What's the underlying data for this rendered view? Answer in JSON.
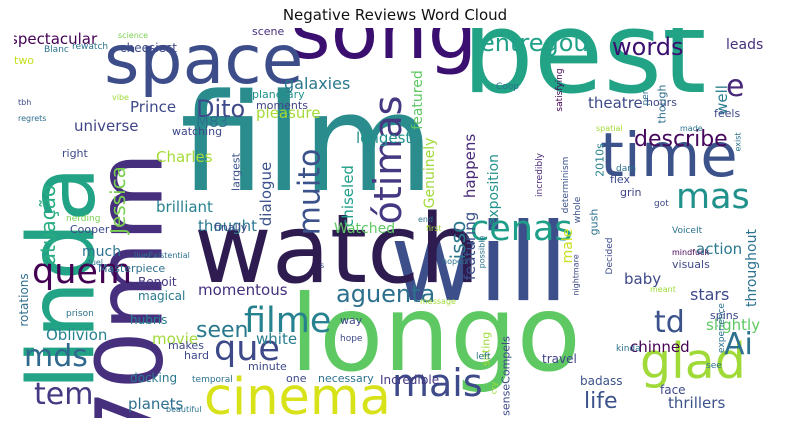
{
  "chart_data": {
    "type": "wordcloud",
    "title": "Negative Reviews Word Cloud",
    "words": [
      {
        "text": "film",
        "weight": 100,
        "color": "#2a8c8c"
      },
      {
        "text": "best",
        "weight": 84,
        "color": "#22a386"
      },
      {
        "text": "will",
        "weight": 80,
        "color": "#3c4f8a"
      },
      {
        "text": "longo",
        "weight": 78,
        "color": "#5ec962"
      },
      {
        "text": "watch",
        "weight": 70,
        "color": "#2e1b4f"
      },
      {
        "text": "linda",
        "weight": 68,
        "color": "#22a386"
      },
      {
        "text": "70mm",
        "weight": 68,
        "color": "#46307e"
      },
      {
        "text": "song",
        "weight": 58,
        "color": "#3b0f70"
      },
      {
        "text": "space",
        "weight": 50,
        "color": "#3d4d8a"
      },
      {
        "text": "time",
        "weight": 45,
        "color": "#3c528b"
      },
      {
        "text": "cinema",
        "weight": 38,
        "color": "#d8e219"
      },
      {
        "text": "glad",
        "weight": 36,
        "color": "#a0da39"
      },
      {
        "text": "mais",
        "weight": 28,
        "color": "#3e4a89"
      },
      {
        "text": "ótimas",
        "weight": 28,
        "color": "#453781"
      },
      {
        "text": "quem",
        "weight": 26,
        "color": "#440154"
      },
      {
        "text": "filme",
        "weight": 26,
        "color": "#26828e"
      },
      {
        "text": "cenas",
        "weight": 26,
        "color": "#1f9e89"
      },
      {
        "text": "que",
        "weight": 26,
        "color": "#3e4989"
      },
      {
        "text": "mas",
        "weight": 26,
        "color": "#21918c"
      },
      {
        "text": "muito",
        "weight": 22,
        "color": "#3b528b"
      },
      {
        "text": "mds",
        "weight": 22,
        "color": "#31688e"
      },
      {
        "text": "tem",
        "weight": 22,
        "color": "#443983"
      },
      {
        "text": "Ai",
        "weight": 22,
        "color": "#2c728e"
      },
      {
        "text": "td",
        "weight": 22,
        "color": "#3b528b"
      },
      {
        "text": "e",
        "weight": 22,
        "color": "#482878"
      },
      {
        "text": "entregou",
        "weight": 18,
        "color": "#1fa188"
      },
      {
        "text": "aguenta",
        "weight": 18,
        "color": "#2d708e"
      },
      {
        "text": "words",
        "weight": 18,
        "color": "#3b0f70"
      },
      {
        "text": "Dito",
        "weight": 18,
        "color": "#3e4a89"
      },
      {
        "text": "describe",
        "weight": 16,
        "color": "#46085c"
      },
      {
        "text": "life",
        "weight": 16,
        "color": "#3b528b"
      },
      {
        "text": "seen",
        "weight": 16,
        "color": "#2a788e"
      },
      {
        "text": "isso",
        "weight": 15,
        "color": "#2a788e"
      },
      {
        "text": "Jessica",
        "weight": 15,
        "color": "#7ad151"
      },
      {
        "text": "atuação",
        "weight": 15,
        "color": "#27ad81"
      },
      {
        "text": "spectacular",
        "weight": 11,
        "color": "#440154"
      },
      {
        "text": "cheesiest",
        "weight": 9,
        "color": "#3e4989"
      },
      {
        "text": "galaxies",
        "weight": 12,
        "color": "#2a788e"
      },
      {
        "text": "M83",
        "weight": 11,
        "color": "#2c728e"
      },
      {
        "text": "longest",
        "weight": 11,
        "color": "#21918c"
      },
      {
        "text": "pleasure",
        "weight": 11,
        "color": "#a5db36"
      },
      {
        "text": "featured",
        "weight": 10,
        "color": "#5ec962"
      },
      {
        "text": "theatre",
        "weight": 11,
        "color": "#3e4a89"
      },
      {
        "text": "well",
        "weight": 11,
        "color": "#287d8e"
      },
      {
        "text": "leads",
        "weight": 10,
        "color": "#46307e"
      },
      {
        "text": "Prince",
        "weight": 11,
        "color": "#3e4989"
      },
      {
        "text": "universe",
        "weight": 11,
        "color": "#414487"
      },
      {
        "text": "Charles",
        "weight": 11,
        "color": "#a5db36"
      },
      {
        "text": "brilliant",
        "weight": 11,
        "color": "#26828e"
      },
      {
        "text": "thought",
        "weight": 11,
        "color": "#2a788e"
      },
      {
        "text": "dialogue",
        "weight": 11,
        "color": "#3b528b"
      },
      {
        "text": "chiseled",
        "weight": 11,
        "color": "#1f9e89"
      },
      {
        "text": "Genuinely",
        "weight": 10,
        "color": "#a0da39"
      },
      {
        "text": "happens",
        "weight": 11,
        "color": "#482878"
      },
      {
        "text": "exposition",
        "weight": 10,
        "color": "#21918c"
      },
      {
        "text": "featuring",
        "weight": 11,
        "color": "#3b528b"
      },
      {
        "text": "male",
        "weight": 10,
        "color": "#c8e020"
      },
      {
        "text": "action",
        "weight": 11,
        "color": "#2a788e"
      },
      {
        "text": "throughout",
        "weight": 10,
        "color": "#2c728e"
      },
      {
        "text": "baby",
        "weight": 11,
        "color": "#3e4989"
      },
      {
        "text": "stars",
        "weight": 12,
        "color": "#3e4a89"
      },
      {
        "text": "momentous",
        "weight": 11,
        "color": "#46307e"
      },
      {
        "text": "Watched",
        "weight": 10,
        "color": "#5ec962"
      },
      {
        "text": "Oblivion",
        "weight": 11,
        "color": "#26828e"
      },
      {
        "text": "white",
        "weight": 11,
        "color": "#287d8e"
      },
      {
        "text": "movie",
        "weight": 11,
        "color": "#a0da39"
      },
      {
        "text": "slightly",
        "weight": 11,
        "color": "#5ec962"
      },
      {
        "text": "chinned",
        "weight": 11,
        "color": "#440154"
      },
      {
        "text": "thrillers",
        "weight": 11,
        "color": "#3b528b"
      },
      {
        "text": "planets",
        "weight": 11,
        "color": "#2e6e8e"
      },
      {
        "text": "docking",
        "weight": 9,
        "color": "#2a788e"
      },
      {
        "text": "Incredible",
        "weight": 9,
        "color": "#443983"
      },
      {
        "text": "badass",
        "weight": 9,
        "color": "#3b528b"
      },
      {
        "text": "travel",
        "weight": 9,
        "color": "#414487"
      },
      {
        "text": "face",
        "weight": 9,
        "color": "#3e4989"
      },
      {
        "text": "much",
        "weight": 10,
        "color": "#2c728e"
      },
      {
        "text": "rotations",
        "weight": 9,
        "color": "#2e6e8e"
      },
      {
        "text": "Benoit",
        "weight": 9,
        "color": "#443983"
      },
      {
        "text": "magical",
        "weight": 9,
        "color": "#2a788e"
      },
      {
        "text": "hubris",
        "weight": 9,
        "color": "#26828e"
      },
      {
        "text": "Masterpiece",
        "weight": 8,
        "color": "#2e6e8e"
      },
      {
        "text": "Cooper",
        "weight": 8,
        "color": "#3e4989"
      },
      {
        "text": "nerding",
        "weight": 7,
        "color": "#7ad151"
      },
      {
        "text": "liveExistential",
        "weight": 6,
        "color": "#2c728e"
      },
      {
        "text": "watching",
        "weight": 8,
        "color": "#3e4989"
      },
      {
        "text": "planetary",
        "weight": 8,
        "color": "#21918c"
      },
      {
        "text": "moments",
        "weight": 8,
        "color": "#414487"
      },
      {
        "text": "finally",
        "weight": 8,
        "color": "#3e4989"
      },
      {
        "text": "largest",
        "weight": 8,
        "color": "#3b528b"
      },
      {
        "text": "right",
        "weight": 8,
        "color": "#3e4989"
      },
      {
        "text": "two",
        "weight": 8,
        "color": "#c8e020"
      },
      {
        "text": "rewatch",
        "weight": 7,
        "color": "#2c728e"
      },
      {
        "text": "Blanc",
        "weight": 7,
        "color": "#2c728e"
      },
      {
        "text": "science",
        "weight": 6,
        "color": "#7ad151"
      },
      {
        "text": "scene",
        "weight": 8,
        "color": "#46307e"
      },
      {
        "text": "tbh",
        "weight": 6,
        "color": "#3e4989"
      },
      {
        "text": "regrets",
        "weight": 6,
        "color": "#2e6e8e"
      },
      {
        "text": "vibe",
        "weight": 6,
        "color": "#a0da39"
      },
      {
        "text": "Coop",
        "weight": 7,
        "color": "#2c728e"
      },
      {
        "text": "satisfying",
        "weight": 7,
        "color": "#440154"
      },
      {
        "text": "hours",
        "weight": 8,
        "color": "#3e4989"
      },
      {
        "text": "per",
        "weight": 7,
        "color": "#2e6e8e"
      },
      {
        "text": "though",
        "weight": 8,
        "color": "#2e6e8e"
      },
      {
        "text": "made",
        "weight": 6,
        "color": "#2c728e"
      },
      {
        "text": "feels",
        "weight": 8,
        "color": "#3e4989"
      },
      {
        "text": "spatial",
        "weight": 6,
        "color": "#a5db36"
      },
      {
        "text": "exist",
        "weight": 6,
        "color": "#2c728e"
      },
      {
        "text": "incredibly",
        "weight": 7,
        "color": "#482878"
      },
      {
        "text": "determinism",
        "weight": 7,
        "color": "#3b528b"
      },
      {
        "text": "2010s",
        "weight": 8,
        "color": "#26828e"
      },
      {
        "text": "dam",
        "weight": 7,
        "color": "#2c728e"
      },
      {
        "text": "flex",
        "weight": 8,
        "color": "#3e4989"
      },
      {
        "text": "grin",
        "weight": 8,
        "color": "#414487"
      },
      {
        "text": "got",
        "weight": 7,
        "color": "#3e4989"
      },
      {
        "text": "whole",
        "weight": 7,
        "color": "#3b528b"
      },
      {
        "text": "gush",
        "weight": 8,
        "color": "#2c728e"
      },
      {
        "text": "Decided",
        "weight": 7,
        "color": "#3e4989"
      },
      {
        "text": "VoiceIt",
        "weight": 7,
        "color": "#2c728e"
      },
      {
        "text": "mindfuck",
        "weight": 6,
        "color": "#440154"
      },
      {
        "text": "visuals",
        "weight": 8,
        "color": "#3e4989"
      },
      {
        "text": "nightmare",
        "weight": 6,
        "color": "#3e4989"
      },
      {
        "text": "meant",
        "weight": 6,
        "color": "#a0da39"
      },
      {
        "text": "spins",
        "weight": 8,
        "color": "#3e4989"
      },
      {
        "text": "experience",
        "weight": 7,
        "color": "#2c728e"
      },
      {
        "text": "end",
        "weight": 6,
        "color": "#2c728e"
      },
      {
        "text": "first",
        "weight": 6,
        "color": "#a0da39"
      },
      {
        "text": "possible",
        "weight": 6,
        "color": "#2c728e"
      },
      {
        "text": "hoped",
        "weight": 6,
        "color": "#2c728e"
      },
      {
        "text": "message",
        "weight": 6,
        "color": "#a0da39"
      },
      {
        "text": "fuel",
        "weight": 6,
        "color": "#2c728e"
      },
      {
        "text": "prison",
        "weight": 7,
        "color": "#2c728e"
      },
      {
        "text": "way",
        "weight": 8,
        "color": "#3e4989"
      },
      {
        "text": "hope",
        "weight": 7,
        "color": "#3e4989"
      },
      {
        "text": "sitting",
        "weight": 8,
        "color": "#a0da39"
      },
      {
        "text": "senseCompels",
        "weight": 8,
        "color": "#3e4989"
      },
      {
        "text": "cry",
        "weight": 6,
        "color": "#a0da39"
      },
      {
        "text": "left",
        "weight": 7,
        "color": "#2c728e"
      },
      {
        "text": "kinda",
        "weight": 7,
        "color": "#2c728e"
      },
      {
        "text": "see",
        "weight": 7,
        "color": "#2c728e"
      },
      {
        "text": "makes",
        "weight": 8,
        "color": "#3e4989"
      },
      {
        "text": "hard",
        "weight": 8,
        "color": "#3e4989"
      },
      {
        "text": "minute",
        "weight": 8,
        "color": "#3e4989"
      },
      {
        "text": "one",
        "weight": 8,
        "color": "#3e4989"
      },
      {
        "text": "necessary",
        "weight": 8,
        "color": "#2c728e"
      },
      {
        "text": "temporal",
        "weight": 7,
        "color": "#2c728e"
      },
      {
        "text": "beautiful",
        "weight": 6,
        "color": "#2c728e"
      },
      {
        "text": "s",
        "weight": 6,
        "color": "#3e4989"
      }
    ]
  }
}
